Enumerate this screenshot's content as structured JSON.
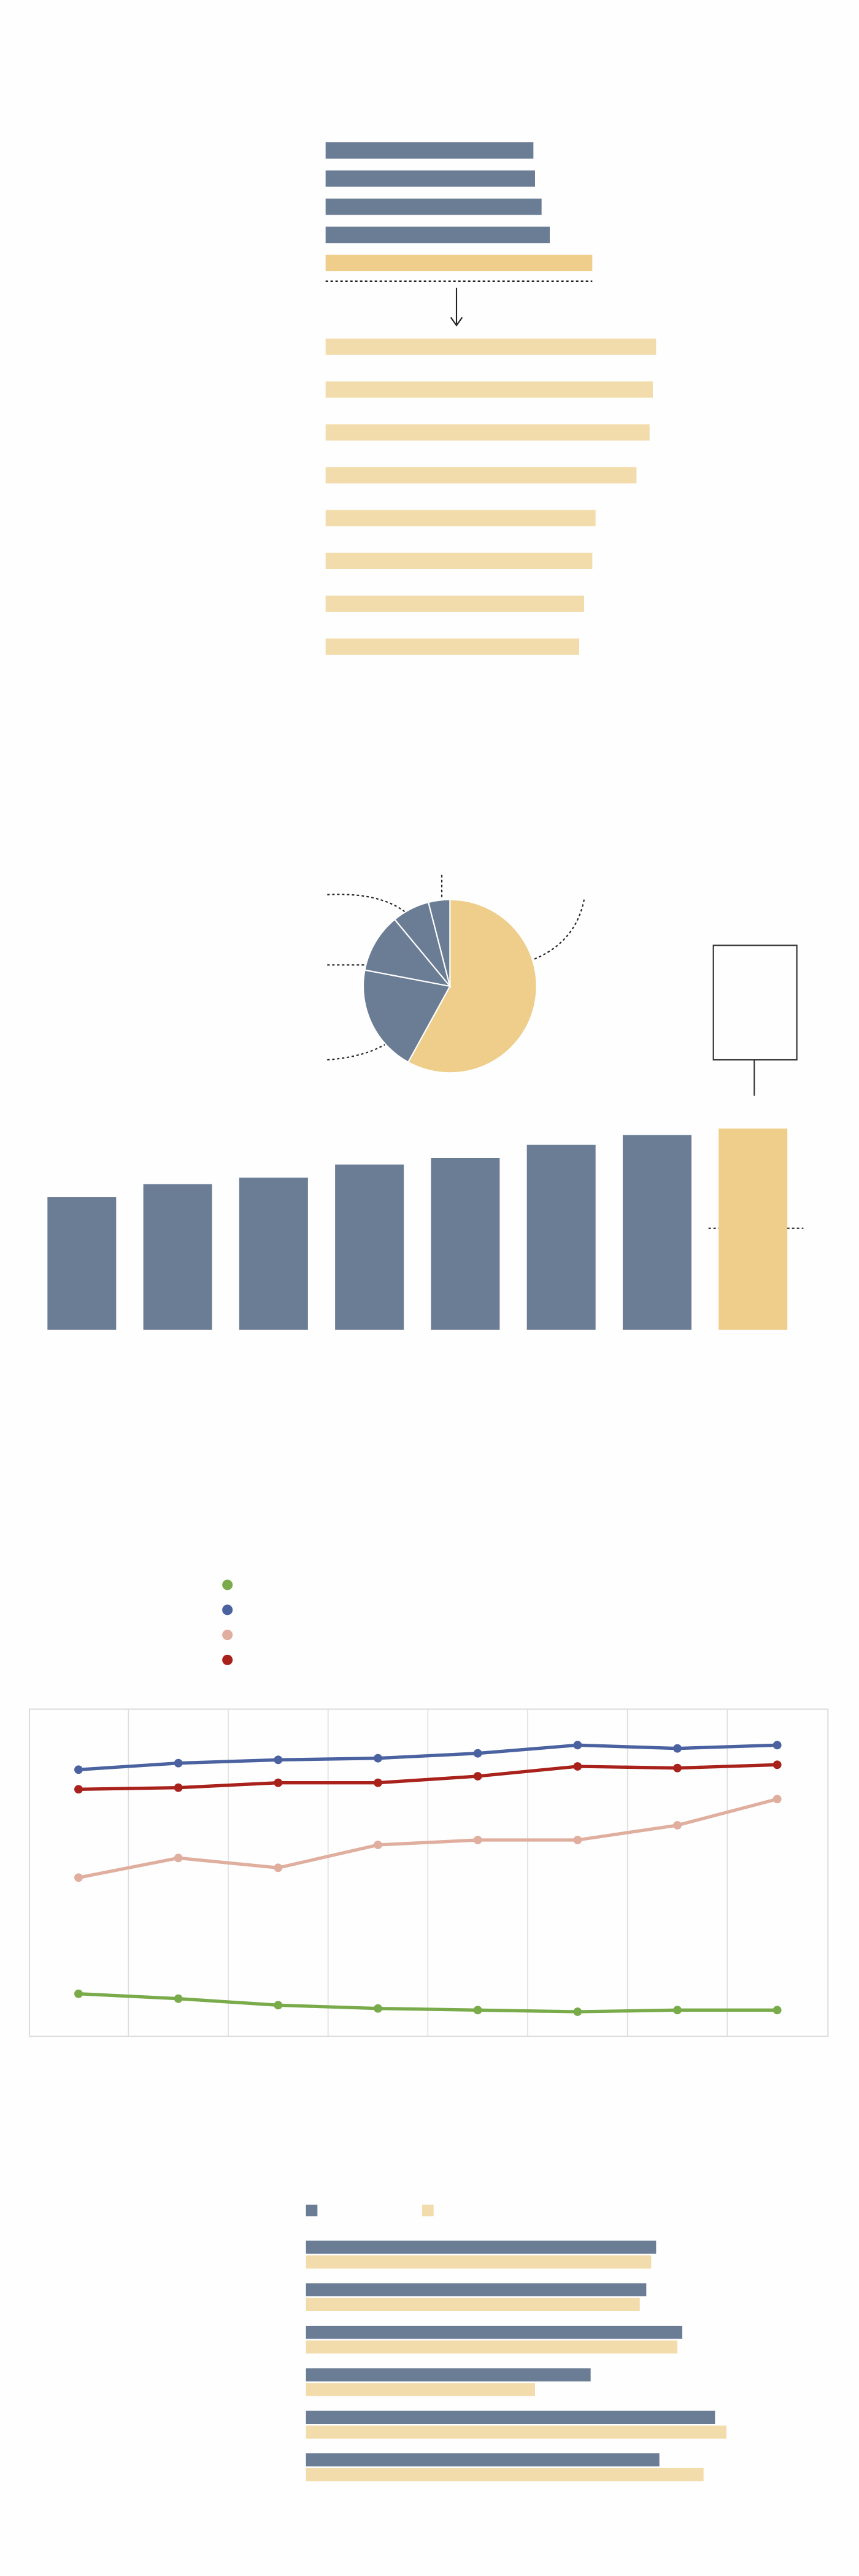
{
  "chart_data": [
    {
      "type": "hbar",
      "values": [
        127,
        128,
        132,
        137,
        163
      ],
      "colors": [
        "#6b7d95",
        "#6b7d95",
        "#6b7d95",
        "#6b7d95",
        "#eece8a"
      ],
      "xlim": [
        0,
        210
      ]
    },
    {
      "type": "hbar",
      "values": [
        202,
        200,
        198,
        190,
        165,
        163,
        158,
        155
      ],
      "color": "#f3dcab",
      "xlim": [
        0,
        210
      ]
    },
    {
      "type": "pie",
      "values": [
        58,
        20,
        11,
        7,
        4
      ],
      "colors": [
        "#eece8a",
        "#6b7d95",
        "#6b7d95",
        "#6b7d95",
        "#6b7d95"
      ]
    },
    {
      "type": "bar",
      "values": [
        81,
        89,
        93,
        101,
        105,
        113,
        119,
        123
      ],
      "colors": [
        "#6b7d95",
        "#6b7d95",
        "#6b7d95",
        "#6b7d95",
        "#6b7d95",
        "#6b7d95",
        "#6b7d95",
        "#eece8a"
      ],
      "ylim": [
        0,
        130
      ]
    },
    {
      "type": "line",
      "ylim": [
        0,
        100
      ],
      "grid": true,
      "series": [
        {
          "color": "#7aab4a",
          "values": [
            13,
            11.5,
            9.5,
            8.5,
            8,
            7.5,
            8,
            8
          ]
        },
        {
          "color": "#4a62a0",
          "values": [
            81.5,
            83.5,
            84.5,
            85,
            86.5,
            89,
            88,
            89
          ]
        },
        {
          "color": "#e0ae9e",
          "values": [
            48.5,
            54.5,
            51.5,
            58.5,
            60,
            60,
            64.5,
            72.5
          ]
        },
        {
          "color": "#a8211a",
          "values": [
            75.5,
            76,
            77.5,
            77.5,
            79.5,
            82.5,
            82,
            83
          ]
        }
      ]
    },
    {
      "type": "grouped-hbar",
      "xlim": [
        0,
        260
      ],
      "series": [
        {
          "color": "#6b7d95",
          "values": [
            214,
            208,
            230,
            174,
            250,
            216
          ]
        },
        {
          "color": "#f3dcab",
          "values": [
            211,
            204,
            227,
            140,
            257,
            243
          ]
        }
      ]
    }
  ]
}
